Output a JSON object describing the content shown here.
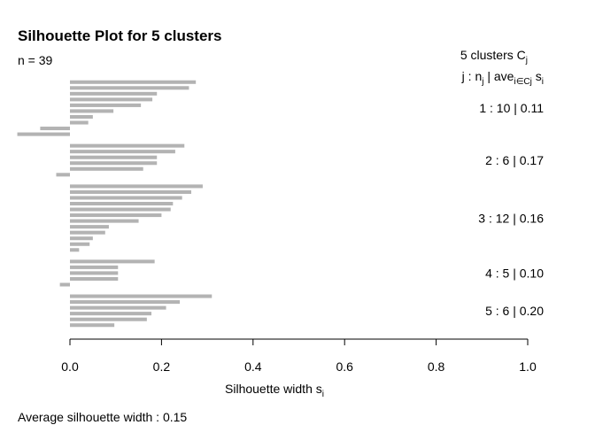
{
  "chart_data": {
    "type": "bar",
    "orientation": "horizontal",
    "title": "Silhouette Plot for 5 clusters",
    "n_label": "n = 39",
    "header": {
      "line1": "5  clusters  C",
      "line1_sub": "j",
      "line2_j": "j :  n",
      "line2_j_sub": "j",
      "line2_ave": " | ave",
      "line2_ave_sub": "i∈Cj",
      "line2_s": "  s",
      "line2_s_sub": "i"
    },
    "xlabel": "Silhouette width s",
    "xlabel_sub": "i",
    "xlim": [
      0,
      1
    ],
    "x_ticks": [
      "0.0",
      "0.2",
      "0.4",
      "0.6",
      "0.8",
      "1.0"
    ],
    "footer": "Average silhouette width :  0.15",
    "clusters": [
      {
        "label": "1 :   10  |  0.11",
        "values": [
          0.275,
          0.26,
          0.19,
          0.18,
          0.155,
          0.095,
          0.05,
          0.04,
          -0.065,
          -0.115
        ]
      },
      {
        "label": "2 :   6  |  0.17",
        "values": [
          0.25,
          0.23,
          0.19,
          0.19,
          0.16,
          -0.03
        ]
      },
      {
        "label": "3 :   12  |  0.16",
        "values": [
          0.29,
          0.265,
          0.245,
          0.225,
          0.22,
          0.2,
          0.15,
          0.085,
          0.077,
          0.05,
          0.043,
          0.02
        ]
      },
      {
        "label": "4 :   5  |  0.10",
        "values": [
          0.185,
          0.105,
          0.105,
          0.105,
          -0.022
        ]
      },
      {
        "label": "5 :   6  |  0.20",
        "values": [
          0.31,
          0.24,
          0.21,
          0.178,
          0.168,
          0.097
        ]
      }
    ]
  }
}
